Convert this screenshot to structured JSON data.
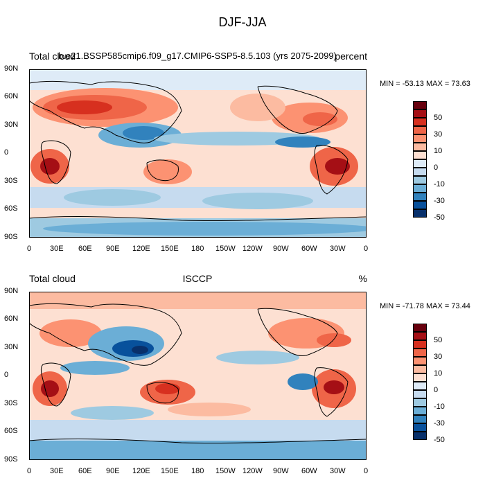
{
  "main_title": "DJF-JJA",
  "panels": [
    {
      "left_string": "Total cloud",
      "center_string": "b.e21.BSSP585cmip6.f09_g17.CMIP6-SSP5-8.5.103 (yrs 2075-2099)",
      "right_string": "percent",
      "min_max": "MIN = -53.13 MAX =  73.63"
    },
    {
      "left_string": "Total cloud",
      "center_string": "ISCCP",
      "right_string": "%",
      "min_max": "MIN = -71.78 MAX =  73.44"
    }
  ],
  "lat_ticks": [
    "90N",
    "60N",
    "30N",
    "0",
    "30S",
    "60S",
    "90S"
  ],
  "lon_ticks": [
    "0",
    "30E",
    "60E",
    "90E",
    "120E",
    "150E",
    "180",
    "150W",
    "120W",
    "90W",
    "60W",
    "30W",
    "0"
  ],
  "colorbar": {
    "labels": [
      "50",
      "30",
      "10",
      "0",
      "-10",
      "-30",
      "-50"
    ],
    "colors": [
      "#67000d",
      "#a50f15",
      "#d7301f",
      "#ef6548",
      "#fc9272",
      "#fcbba1",
      "#fee0d2",
      "#deebf7",
      "#c6dbef",
      "#9ecae1",
      "#6baed6",
      "#3182bd",
      "#08519c",
      "#08306b"
    ]
  },
  "colors": {
    "background_field": "#fdf1ea",
    "coast": "#000000"
  }
}
